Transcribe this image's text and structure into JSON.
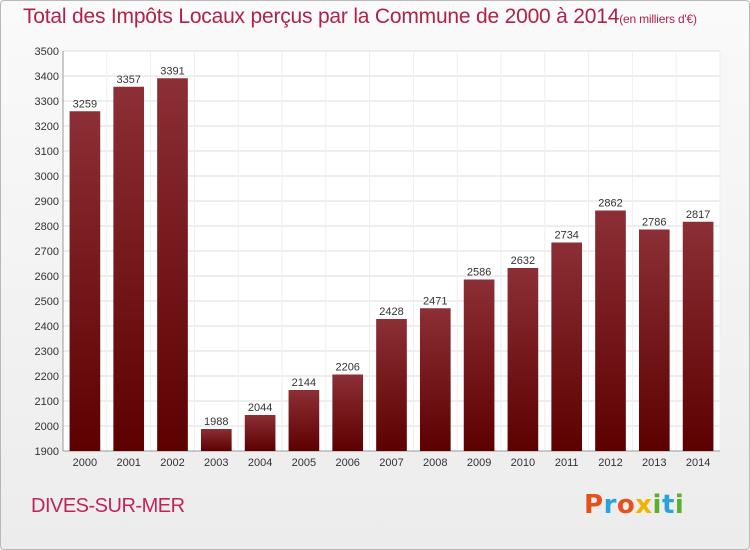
{
  "chart_data": {
    "type": "bar",
    "title": "Total des Impôts Locaux perçus par la Commune de 2000 à 2014",
    "title_unit": "(en milliers d'€)",
    "categories": [
      "2000",
      "2001",
      "2002",
      "2003",
      "2004",
      "2005",
      "2006",
      "2007",
      "2008",
      "2009",
      "2010",
      "2011",
      "2012",
      "2013",
      "2014"
    ],
    "values": [
      3259,
      3357,
      3391,
      1988,
      2044,
      2144,
      2206,
      2428,
      2471,
      2586,
      2632,
      2734,
      2862,
      2786,
      2817
    ],
    "ylim": [
      1900,
      3500
    ],
    "yticks": [
      1900,
      2000,
      2100,
      2200,
      2300,
      2400,
      2500,
      2600,
      2700,
      2800,
      2900,
      3000,
      3100,
      3200,
      3300,
      3400,
      3500
    ],
    "xlabel": "",
    "ylabel": "",
    "grid": true,
    "colors": {
      "bar_top": "#8c2f36",
      "bar_bottom": "#5c0000",
      "grid": "#dcdcdc"
    }
  },
  "commune": "DIVES-SUR-MER",
  "logo": {
    "letters": [
      {
        "char": "P",
        "color": "#e6511b"
      },
      {
        "char": "r",
        "color": "#29a3d9"
      },
      {
        "char": "o",
        "color": "#e6511b"
      },
      {
        "char": "x",
        "color": "#f0b400"
      },
      {
        "char": "i",
        "color": "#5aaf2d"
      },
      {
        "char": "t",
        "color": "#29a3d9"
      },
      {
        "char": "i",
        "color": "#5aaf2d"
      }
    ]
  }
}
